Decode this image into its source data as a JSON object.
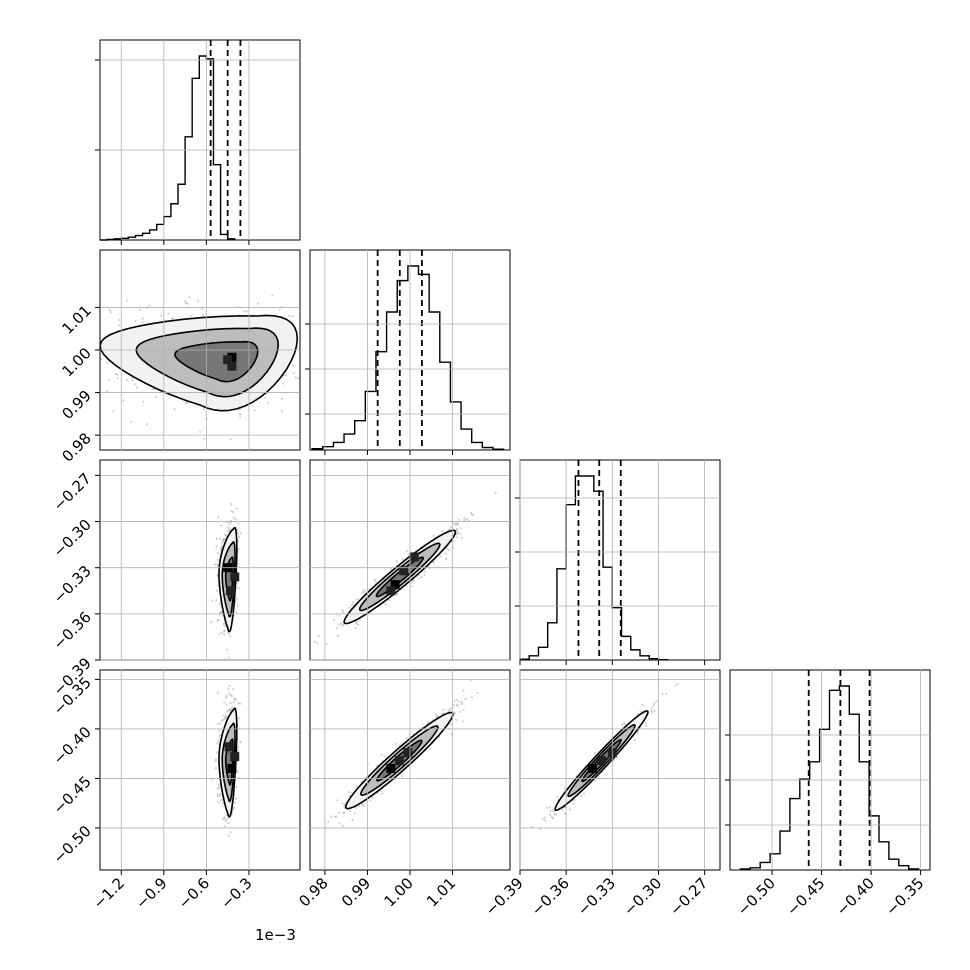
{
  "chart_data": {
    "type": "corner",
    "title": "",
    "grid": true,
    "parameters": [
      {
        "range": [
          -1.35,
          0.06
        ],
        "ticks": [
          -1.2,
          -0.9,
          -0.6,
          -0.3
        ],
        "tick_labels": [
          "−1.2",
          "−0.9",
          "−0.6",
          "−0.3"
        ],
        "offset_label": "1e−3",
        "quantiles": [
          -0.57,
          -0.45,
          -0.36
        ],
        "hist": {
          "edges": [
            -1.35,
            -0.25
          ],
          "bin_width": 0.05,
          "counts": [
            0,
            1,
            2,
            3,
            5,
            8,
            12,
            18,
            28,
            42,
            65,
            100,
            185,
            290,
            330,
            325,
            135,
            10,
            2
          ]
        },
        "yticks": [
          0.5,
          1.0,
          1.5
        ]
      },
      {
        "range": [
          0.9765,
          1.0235
        ],
        "ticks": [
          0.98,
          0.99,
          1.0,
          1.01
        ],
        "tick_labels": [
          "0.98",
          "0.99",
          "1.00",
          "1.01"
        ],
        "quantiles": [
          0.9924,
          0.9976,
          1.0028
        ],
        "hist": {
          "edges": [
            0.977,
            1.0205
          ],
          "bin_width": 0.0025,
          "counts": [
            3,
            8,
            18,
            38,
            70,
            140,
            235,
            330,
            405,
            440,
            420,
            330,
            210,
            115,
            50,
            18,
            6,
            2
          ]
        },
        "yticks": [
          0.2,
          0.45,
          0.7
        ]
      },
      {
        "range": [
          -0.39,
          -0.26
        ],
        "ticks": [
          -0.39,
          -0.36,
          -0.33,
          -0.3,
          -0.27
        ],
        "tick_labels": [
          "−0.39",
          "−0.36",
          "−0.33",
          "−0.30",
          "−0.27"
        ],
        "quantiles": [
          -0.352,
          -0.3385,
          -0.3245
        ],
        "hist": {
          "edges": [
            -0.39,
            -0.279
          ],
          "bin_width": 0.006,
          "counts": [
            5,
            25,
            75,
            220,
            540,
            920,
            1090,
            1090,
            1000,
            550,
            310,
            140,
            60,
            25,
            8,
            2
          ]
        },
        "yticks": [
          0.3,
          0.6,
          0.9
        ]
      },
      {
        "range": [
          -0.5425,
          -0.3405
        ],
        "ticks": [
          -0.5,
          -0.45,
          -0.4,
          -0.35
        ],
        "tick_labels": [
          "−0.50",
          "−0.45",
          "−0.40",
          "−0.35"
        ],
        "quantiles": [
          -0.463,
          -0.431,
          -0.4015
        ],
        "hist": {
          "edges": [
            -0.532,
            -0.345
          ],
          "bin_width": 0.01,
          "counts": [
            5,
            10,
            35,
            75,
            180,
            330,
            420,
            500,
            650,
            830,
            850,
            720,
            500,
            250,
            130,
            50,
            20,
            5
          ]
        },
        "yticks": [
          0.25,
          0.5,
          0.75
        ]
      }
    ],
    "pairs": [
      {
        "row": 1,
        "col": 0,
        "mean": [
          -0.44,
          0.9975
        ],
        "axes": [
          [
            0.9,
            -0.0045
          ],
          [
            0.2,
            0.0105
          ]
        ],
        "contours": [
          1.0,
          0.72,
          0.42
        ],
        "core_bins": [
          [
            -0.42,
            0.9983
          ],
          [
            -0.42,
            0.9962
          ],
          [
            -0.45,
            0.9977
          ]
        ]
      },
      {
        "row": 2,
        "col": 0,
        "mean": [
          -0.43,
          -0.337
        ],
        "axes": [
          [
            0.08,
            -0.006
          ],
          [
            -0.02,
            -0.032
          ]
        ],
        "contours": [
          1.0,
          0.72,
          0.42
        ],
        "core_bins": [
          [
            -0.45,
            -0.33
          ],
          [
            -0.4,
            -0.336
          ],
          [
            -0.43,
            -0.345
          ]
        ]
      },
      {
        "row": 2,
        "col": 1,
        "mean": [
          0.9976,
          -0.336
        ],
        "axes": [
          [
            0.013,
            0.03
          ],
          [
            0.0016,
            -0.0045
          ]
        ],
        "contours": [
          1.0,
          0.72,
          0.42
        ],
        "core_bins": [
          [
            0.9965,
            -0.341
          ],
          [
            0.9985,
            -0.332
          ],
          [
            1.001,
            -0.323
          ],
          [
            0.9955,
            -0.345
          ]
        ]
      },
      {
        "row": 3,
        "col": 0,
        "mean": [
          -0.43,
          -0.433
        ],
        "axes": [
          [
            0.08,
            -0.008
          ],
          [
            -0.02,
            -0.052
          ]
        ],
        "contours": [
          1.0,
          0.72,
          0.42
        ],
        "core_bins": [
          [
            -0.42,
            -0.44
          ],
          [
            -0.4,
            -0.428
          ],
          [
            -0.44,
            -0.418
          ]
        ]
      },
      {
        "row": 3,
        "col": 1,
        "mean": [
          0.9975,
          -0.432
        ],
        "axes": [
          [
            0.0125,
            0.048
          ],
          [
            0.0015,
            -0.0075
          ]
        ],
        "contours": [
          1.0,
          0.72,
          0.42
        ],
        "core_bins": [
          [
            0.9955,
            -0.44
          ],
          [
            0.9975,
            -0.432
          ],
          [
            0.9995,
            -0.424
          ]
        ]
      },
      {
        "row": 3,
        "col": 2,
        "mean": [
          -0.337,
          -0.432
        ],
        "axes": [
          [
            0.03,
            0.05
          ],
          [
            0.0035,
            -0.0048
          ]
        ],
        "contours": [
          1.0,
          0.72,
          0.42
        ],
        "core_bins": [
          [
            -0.343,
            -0.44
          ],
          [
            -0.337,
            -0.432
          ],
          [
            -0.33,
            -0.424
          ]
        ]
      }
    ]
  }
}
